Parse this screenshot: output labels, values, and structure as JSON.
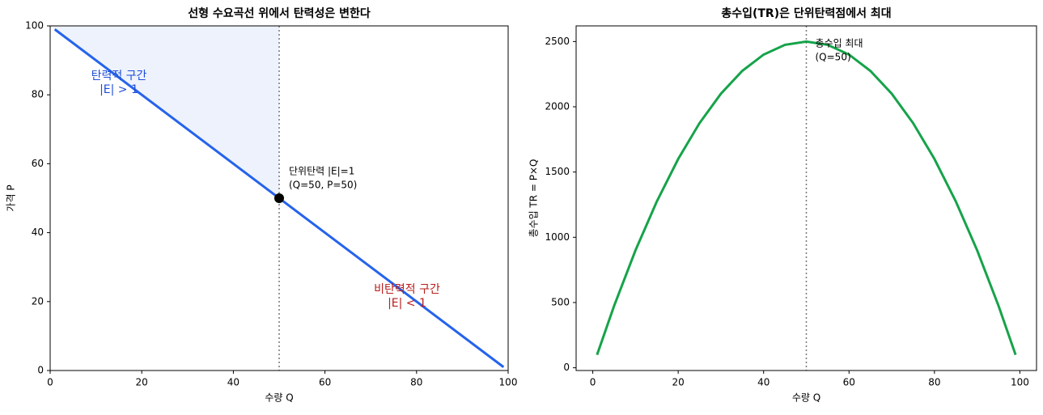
{
  "chart_data": [
    {
      "type": "line",
      "title": "선형 수요곡선 위에서 탄력성은 변한다",
      "xlabel": "수량 Q",
      "ylabel": "가격 P",
      "xlim": [
        0,
        100
      ],
      "ylim": [
        0,
        100
      ],
      "xticks": [
        0,
        20,
        40,
        60,
        80,
        100
      ],
      "yticks": [
        0,
        20,
        40,
        60,
        80,
        100
      ],
      "series": [
        {
          "color": "#2563eb",
          "x": [
            1,
            99
          ],
          "values": [
            99,
            1
          ]
        }
      ],
      "fill_color": "#eef2fd",
      "point": {
        "x": 50,
        "y": 50,
        "color": "#000000"
      },
      "vline": 50,
      "annotations": [
        {
          "lines": [
            "단위탄력 |E|=1",
            "(Q=50, P=50)"
          ],
          "color": "#000000"
        },
        {
          "lines": [
            "탄력적 구간",
            "|E| > 1"
          ],
          "color": "#1d4ed8"
        },
        {
          "lines": [
            "비탄력적 구간",
            "|E| < 1"
          ],
          "color": "#b91c1c"
        }
      ]
    },
    {
      "type": "line",
      "title": "총수입(TR)은 단위탄력점에서 최대",
      "xlabel": "수량 Q",
      "ylabel": "총수입 TR = P×Q",
      "xlim": [
        -3.9,
        103.9
      ],
      "ylim": [
        -21,
        2620
      ],
      "xticks": [
        0,
        20,
        40,
        60,
        80,
        100
      ],
      "yticks": [
        0,
        500,
        1000,
        1500,
        2000,
        2500
      ],
      "series": [
        {
          "color": "#16a34a",
          "x": [
            1,
            5,
            10,
            15,
            20,
            25,
            30,
            35,
            40,
            45,
            50,
            55,
            60,
            65,
            70,
            75,
            80,
            85,
            90,
            95,
            99
          ],
          "values": [
            99,
            475,
            900,
            1275,
            1600,
            1875,
            2100,
            2275,
            2400,
            2475,
            2500,
            2475,
            2400,
            2275,
            2100,
            1875,
            1600,
            1275,
            900,
            475,
            99
          ]
        }
      ],
      "vline": 50,
      "annotations": [
        {
          "lines": [
            "총수입 최대",
            "(Q=50)"
          ],
          "color": "#000000"
        }
      ]
    }
  ]
}
